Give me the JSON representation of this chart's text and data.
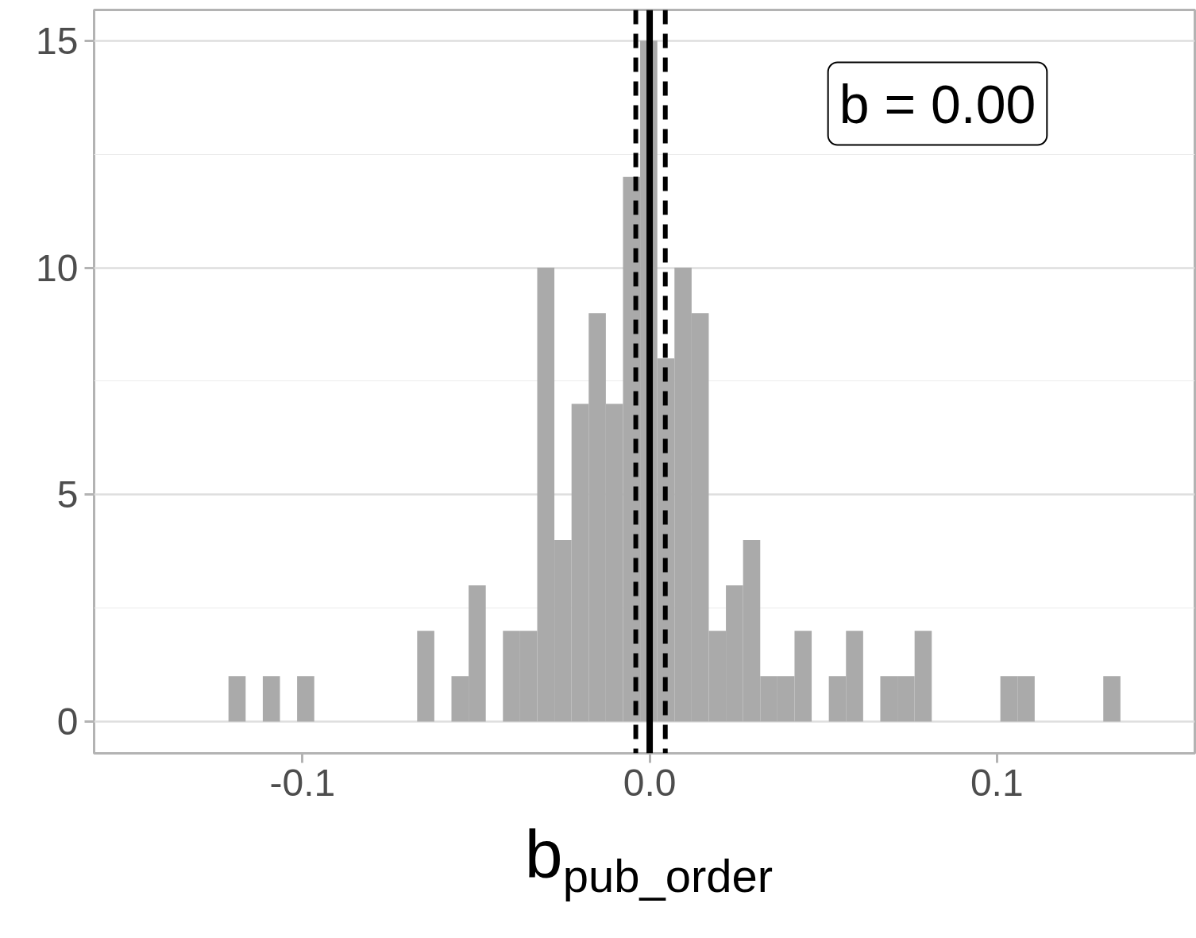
{
  "chart_data": {
    "type": "histogram",
    "xlabel": "b$_{pub_order}$",
    "color": "#aaaaaa",
    "bins": [
      -0.1213,
      -0.11636,
      -0.11142,
      -0.10648,
      -0.10154,
      -0.0966,
      -0.09166,
      -0.08672,
      -0.08178,
      -0.07684,
      -0.0719,
      -0.06696,
      -0.06202,
      -0.05708,
      -0.05214,
      -0.0472,
      -0.04226,
      -0.03732,
      -0.03238,
      -0.02744,
      -0.0225,
      -0.01756,
      -0.01262,
      -0.00768,
      -0.00274,
      0.0022,
      0.00714,
      0.01208,
      0.01702,
      0.02196,
      0.0269,
      0.03184,
      0.03678,
      0.04172,
      0.04666,
      0.0516,
      0.05654,
      0.06148,
      0.06642,
      0.07136,
      0.0763,
      0.08124,
      0.08618,
      0.09112,
      0.09606,
      0.101,
      0.10594,
      0.11088,
      0.11582,
      0.12076,
      0.1257,
      0.13064,
      0.13558
    ],
    "values": [
      1,
      0,
      1,
      0,
      1,
      0,
      0,
      0,
      0,
      0,
      0,
      2,
      0,
      1,
      3,
      0,
      2,
      2,
      10,
      4,
      7,
      9,
      7,
      12,
      15,
      8,
      10,
      9,
      2,
      3,
      4,
      1,
      1,
      2,
      0,
      1,
      2,
      0,
      1,
      1,
      2,
      0,
      0,
      0,
      0,
      1,
      1,
      0,
      0,
      0,
      0,
      1
    ],
    "xlim": [
      -0.16,
      0.157
    ],
    "ylim": [
      -0.7,
      15.68
    ],
    "xticks": [
      {
        "value": -0.1,
        "label": "-0.1"
      },
      {
        "value": 0,
        "label": "0.0"
      },
      {
        "value": 0.1,
        "label": "0.1"
      }
    ],
    "yticks": [
      0,
      5,
      10,
      15
    ],
    "grid": true,
    "ref_lines": [
      {
        "axis": "x",
        "value": 0,
        "line_style": "solid",
        "color": "#000000"
      },
      {
        "axis": "x",
        "value": -0.004,
        "line_style": "dashed",
        "color": "#000000"
      },
      {
        "axis": "x",
        "value": 0.0045,
        "line_style": "dashed",
        "color": "#000000"
      }
    ],
    "annotations": [
      "b = 0.00"
    ]
  }
}
